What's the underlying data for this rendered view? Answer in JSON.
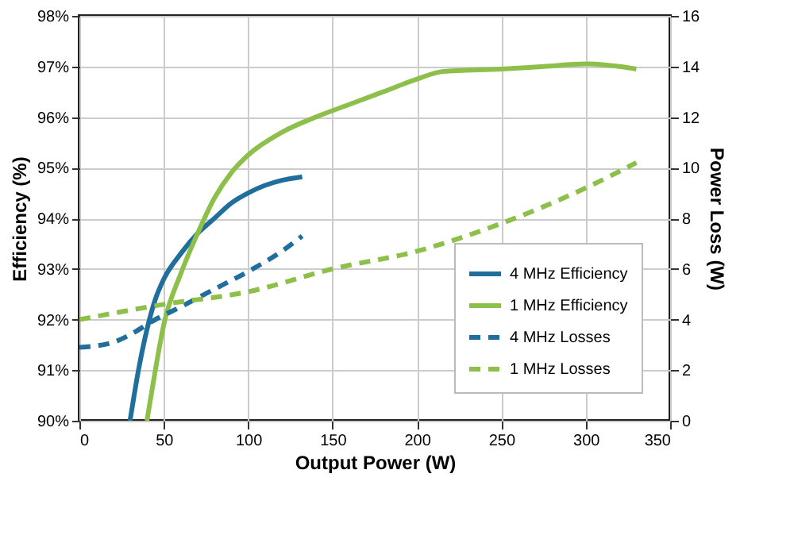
{
  "chart_data": {
    "type": "line",
    "xlabel": "Output Power (W)",
    "ylabel": "Efficiency (%)",
    "y2label": "Power Loss (W)",
    "xlim": [
      0,
      350
    ],
    "xticks": [
      0,
      50,
      100,
      150,
      200,
      250,
      300,
      350
    ],
    "ylim": [
      90,
      98
    ],
    "yticks": [
      {
        "value": 90,
        "label": "90%"
      },
      {
        "value": 91,
        "label": "91%"
      },
      {
        "value": 92,
        "label": "92%"
      },
      {
        "value": 93,
        "label": "93%"
      },
      {
        "value": 94,
        "label": "94%"
      },
      {
        "value": 95,
        "label": "95%"
      },
      {
        "value": 96,
        "label": "96%"
      },
      {
        "value": 97,
        "label": "97%"
      },
      {
        "value": 98,
        "label": "98%"
      }
    ],
    "y2lim": [
      0,
      16
    ],
    "y2ticks": [
      0,
      2,
      4,
      6,
      8,
      10,
      12,
      14,
      16
    ],
    "grid": true,
    "legend": "bottom right",
    "marker": "none",
    "series": [
      {
        "name": "4 MHz Efficiency",
        "color": "#1f6e9c",
        "line_style": "solid",
        "x": [
          30,
          35,
          40,
          45,
          50,
          60,
          70,
          80,
          90,
          100,
          110,
          120,
          132
        ],
        "values": [
          90,
          91,
          91.8,
          92.4,
          92.8,
          93.3,
          93.7,
          94.0,
          94.3,
          94.5,
          94.65,
          94.75,
          94.82
        ]
      },
      {
        "name": "1 MHz Efficiency",
        "color": "#8dc04a",
        "line_style": "solid",
        "x": [
          40,
          45,
          50,
          60,
          70,
          80,
          90,
          100,
          120,
          140,
          160,
          180,
          200,
          215,
          250,
          275,
          300,
          320,
          330
        ],
        "values": [
          90,
          91,
          91.9,
          92.9,
          93.7,
          94.4,
          94.9,
          95.25,
          95.7,
          96.0,
          96.25,
          96.5,
          96.75,
          96.9,
          96.95,
          97.0,
          97.05,
          97.0,
          96.95
        ]
      },
      {
        "name": "4 MHz Losses",
        "color": "#1f6e9c",
        "line_style": "dashed",
        "axis": "y2",
        "x": [
          0,
          20,
          30,
          45,
          60,
          80,
          100,
          120,
          132
        ],
        "values": [
          2.9,
          3.1,
          3.4,
          4.0,
          4.5,
          5.2,
          5.9,
          6.7,
          7.3
        ]
      },
      {
        "name": "1 MHz Losses",
        "color": "#8dc04a",
        "line_style": "dashed",
        "axis": "y2",
        "x": [
          0,
          50,
          100,
          150,
          200,
          250,
          300,
          330
        ],
        "values": [
          4.0,
          4.6,
          5.1,
          6.0,
          6.7,
          7.8,
          9.2,
          10.2
        ]
      }
    ]
  }
}
